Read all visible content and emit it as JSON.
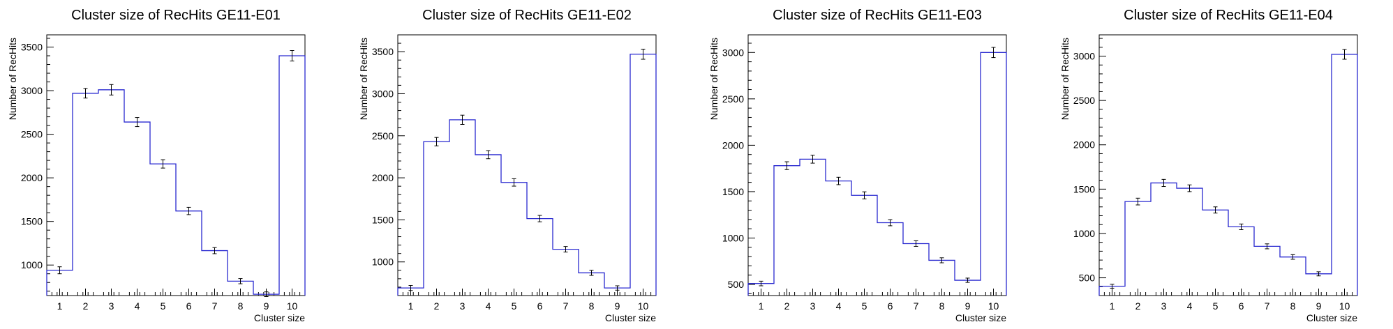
{
  "colors": {
    "line": "#2a2ad0",
    "frame": "#000000"
  },
  "chart_data": [
    {
      "type": "step",
      "title": "Cluster size of RecHits GE11-E01",
      "xlabel": "Cluster size",
      "ylabel": "Number of RecHits",
      "categories": [
        "1",
        "2",
        "3",
        "4",
        "5",
        "6",
        "7",
        "8",
        "9",
        "10"
      ],
      "values": [
        940,
        2970,
        3010,
        2640,
        2160,
        1620,
        1165,
        815,
        665,
        3400
      ],
      "errors": [
        40,
        55,
        60,
        52,
        48,
        42,
        35,
        30,
        27,
        60
      ],
      "ylim": [
        650,
        3640
      ],
      "yticks": [
        1000,
        1500,
        2000,
        2500,
        3000,
        3500
      ],
      "ytick_labels": [
        "1000",
        "1500",
        "2000",
        "2500",
        "3000",
        "3500"
      ]
    },
    {
      "type": "step",
      "title": "Cluster size of RecHits GE11-E02",
      "xlabel": "Cluster size",
      "ylabel": "Number of RecHits",
      "categories": [
        "1",
        "2",
        "3",
        "4",
        "5",
        "6",
        "7",
        "8",
        "9",
        "10"
      ],
      "values": [
        690,
        2430,
        2690,
        2275,
        1945,
        1515,
        1150,
        870,
        690,
        3470
      ],
      "errors": [
        30,
        50,
        55,
        48,
        44,
        38,
        33,
        30,
        26,
        60
      ],
      "ylim": [
        600,
        3700
      ],
      "yticks": [
        1000,
        1500,
        2000,
        2500,
        3000,
        3500
      ],
      "ytick_labels": [
        "1000",
        "1500",
        "2000",
        "2500",
        "3000",
        "3500"
      ]
    },
    {
      "type": "step",
      "title": "Cluster size of RecHits GE11-E03",
      "xlabel": "Cluster size",
      "ylabel": "Number of RecHits",
      "categories": [
        "1",
        "2",
        "3",
        "4",
        "5",
        "6",
        "7",
        "8",
        "9",
        "10"
      ],
      "values": [
        510,
        1780,
        1850,
        1615,
        1460,
        1165,
        940,
        760,
        545,
        3000
      ],
      "errors": [
        25,
        42,
        43,
        40,
        38,
        33,
        30,
        27,
        23,
        55
      ],
      "ylim": [
        380,
        3190
      ],
      "yticks": [
        500,
        1000,
        1500,
        2000,
        2500,
        3000
      ],
      "ytick_labels": [
        "500",
        "1000",
        "1500",
        "2000",
        "2500",
        "3000"
      ]
    },
    {
      "type": "step",
      "title": "Cluster size of RecHits GE11-E04",
      "xlabel": "Cluster size",
      "ylabel": "Number of RecHits",
      "categories": [
        "1",
        "2",
        "3",
        "4",
        "5",
        "6",
        "7",
        "8",
        "9",
        "10"
      ],
      "values": [
        405,
        1360,
        1570,
        1510,
        1265,
        1075,
        855,
        735,
        545,
        3020
      ],
      "errors": [
        22,
        38,
        40,
        38,
        35,
        32,
        28,
        26,
        23,
        55
      ],
      "ylim": [
        300,
        3240
      ],
      "yticks": [
        500,
        1000,
        1500,
        2000,
        2500,
        3000
      ],
      "ytick_labels": [
        "500",
        "1000",
        "1500",
        "2000",
        "2500",
        "3000"
      ]
    }
  ]
}
